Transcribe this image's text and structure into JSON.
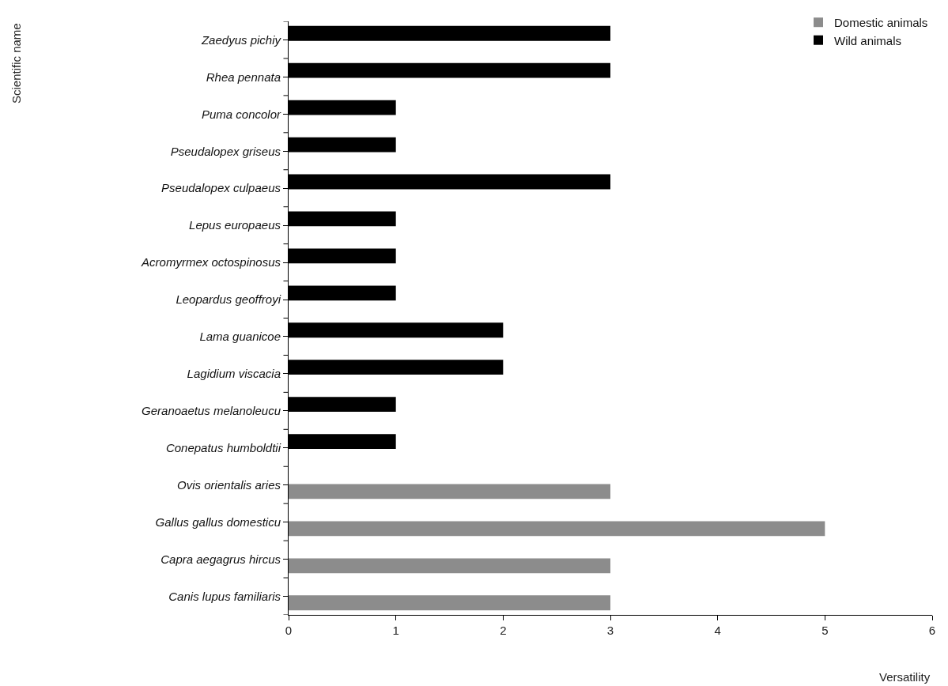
{
  "chart_data": {
    "type": "bar",
    "orientation": "horizontal",
    "xlabel": "Versatility",
    "annotations": [
      "Scientific name"
    ],
    "categories": [
      "Zaedyus pichiy",
      "Rhea pennata",
      "Puma concolor",
      "Pseudalopex griseus",
      "Pseudalopex culpaeus",
      "Lepus europaeus",
      "Acromyrmex octospinosus",
      "Leopardus geoffroyi",
      "Lama guanicoe",
      "Lagidium viscacia",
      "Geranoaetus melanoleucu",
      "Conepatus humboldtii",
      "Ovis orientalis aries",
      "Gallus gallus domesticu",
      "Capra aegagrus hircus",
      "Canis lupus familiaris"
    ],
    "series": [
      {
        "name": "Domestic animals",
        "color": "#8c8c8c",
        "values": [
          null,
          null,
          null,
          null,
          null,
          null,
          null,
          null,
          null,
          null,
          null,
          null,
          3,
          5,
          3,
          3
        ]
      },
      {
        "name": "Wild animals",
        "color": "#000000",
        "values": [
          3,
          3,
          1,
          1,
          3,
          1,
          1,
          1,
          2,
          2,
          1,
          1,
          null,
          null,
          null,
          null
        ]
      }
    ],
    "xlim": [
      0,
      6
    ],
    "xticks": [
      0,
      1,
      2,
      3,
      4,
      5,
      6
    ],
    "legend": "top right"
  }
}
